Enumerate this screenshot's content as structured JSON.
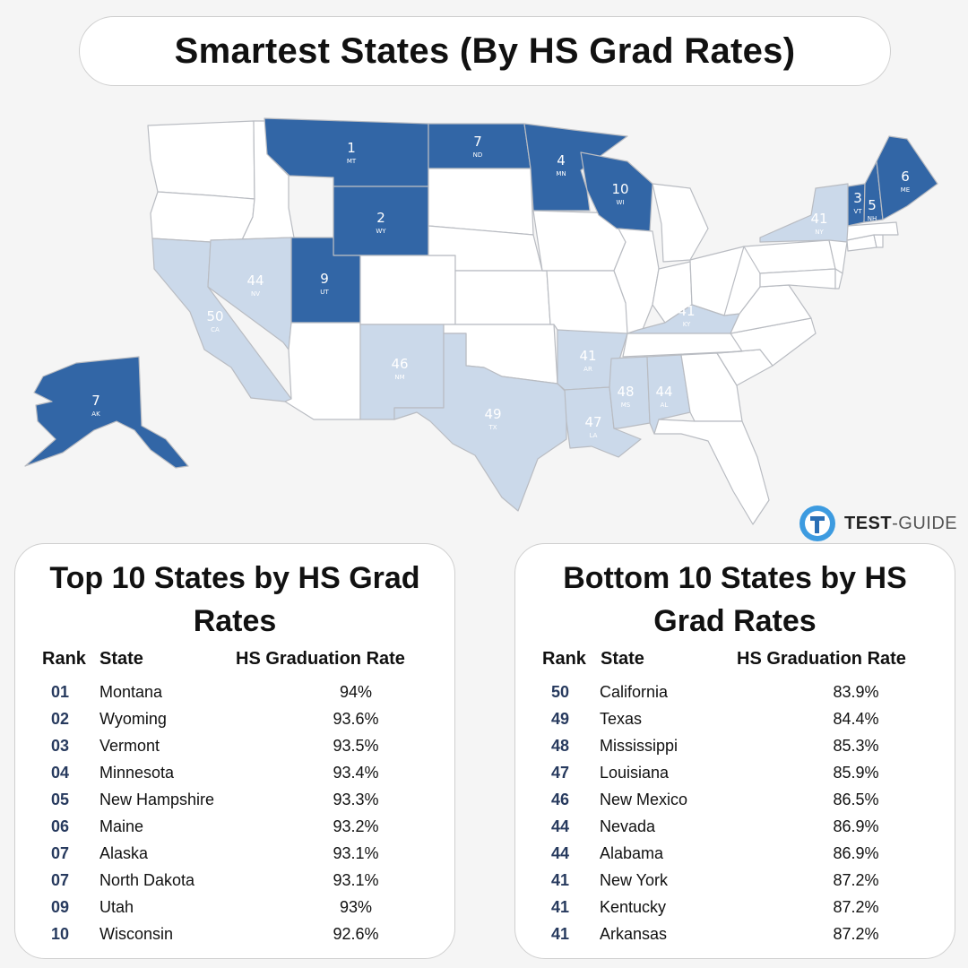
{
  "title": "Smartest States (By HS Grad Rates)",
  "colors": {
    "top": "#3266a6",
    "bottom": "#cbd9ea",
    "neutral": "#ffffff",
    "border": "#b9bcc2"
  },
  "logo": {
    "brand": "TEST",
    "sep": "-",
    "suffix": "GUIDE"
  },
  "map": {
    "states": [
      {
        "abbr": "MT",
        "rank": "1",
        "group": "top"
      },
      {
        "abbr": "WY",
        "rank": "2",
        "group": "top"
      },
      {
        "abbr": "VT",
        "rank": "3",
        "group": "top"
      },
      {
        "abbr": "MN",
        "rank": "4",
        "group": "top"
      },
      {
        "abbr": "NH",
        "rank": "5",
        "group": "top"
      },
      {
        "abbr": "ME",
        "rank": "6",
        "group": "top"
      },
      {
        "abbr": "AK",
        "rank": "7",
        "group": "top"
      },
      {
        "abbr": "ND",
        "rank": "7",
        "group": "top"
      },
      {
        "abbr": "UT",
        "rank": "9",
        "group": "top"
      },
      {
        "abbr": "WI",
        "rank": "10",
        "group": "top"
      },
      {
        "abbr": "CA",
        "rank": "50",
        "group": "bottom"
      },
      {
        "abbr": "TX",
        "rank": "49",
        "group": "bottom"
      },
      {
        "abbr": "MS",
        "rank": "48",
        "group": "bottom"
      },
      {
        "abbr": "LA",
        "rank": "47",
        "group": "bottom"
      },
      {
        "abbr": "NM",
        "rank": "46",
        "group": "bottom"
      },
      {
        "abbr": "NV",
        "rank": "44",
        "group": "bottom"
      },
      {
        "abbr": "AL",
        "rank": "44",
        "group": "bottom"
      },
      {
        "abbr": "NY",
        "rank": "41",
        "group": "bottom"
      },
      {
        "abbr": "KY",
        "rank": "41",
        "group": "bottom"
      },
      {
        "abbr": "AR",
        "rank": "41",
        "group": "bottom"
      }
    ]
  },
  "top10": {
    "title": "Top 10 States by HS Grad Rates",
    "headers": {
      "rank": "Rank",
      "state": "State",
      "rate": "HS Graduation Rate"
    },
    "rows": [
      {
        "rank": "01",
        "state": "Montana",
        "rate": "94%"
      },
      {
        "rank": "02",
        "state": "Wyoming",
        "rate": "93.6%"
      },
      {
        "rank": "03",
        "state": "Vermont",
        "rate": "93.5%"
      },
      {
        "rank": "04",
        "state": "Minnesota",
        "rate": "93.4%"
      },
      {
        "rank": "05",
        "state": "New Hampshire",
        "rate": "93.3%"
      },
      {
        "rank": "06",
        "state": "Maine",
        "rate": "93.2%"
      },
      {
        "rank": "07",
        "state": "Alaska",
        "rate": "93.1%"
      },
      {
        "rank": "07",
        "state": "North Dakota",
        "rate": "93.1%"
      },
      {
        "rank": "09",
        "state": "Utah",
        "rate": "93%"
      },
      {
        "rank": "10",
        "state": "Wisconsin",
        "rate": "92.6%"
      }
    ]
  },
  "bottom10": {
    "title": "Bottom 10 States by HS Grad Rates",
    "headers": {
      "rank": "Rank",
      "state": "State",
      "rate": "HS Graduation Rate"
    },
    "rows": [
      {
        "rank": "50",
        "state": "California",
        "rate": "83.9%"
      },
      {
        "rank": "49",
        "state": "Texas",
        "rate": "84.4%"
      },
      {
        "rank": "48",
        "state": "Mississippi",
        "rate": "85.3%"
      },
      {
        "rank": "47",
        "state": "Louisiana",
        "rate": "85.9%"
      },
      {
        "rank": "46",
        "state": "New Mexico",
        "rate": "86.5%"
      },
      {
        "rank": "44",
        "state": "Nevada",
        "rate": "86.9%"
      },
      {
        "rank": "44",
        "state": "Alabama",
        "rate": "86.9%"
      },
      {
        "rank": "41",
        "state": "New York",
        "rate": "87.2%"
      },
      {
        "rank": "41",
        "state": "Kentucky",
        "rate": "87.2%"
      },
      {
        "rank": "41",
        "state": "Arkansas",
        "rate": "87.2%"
      }
    ]
  }
}
